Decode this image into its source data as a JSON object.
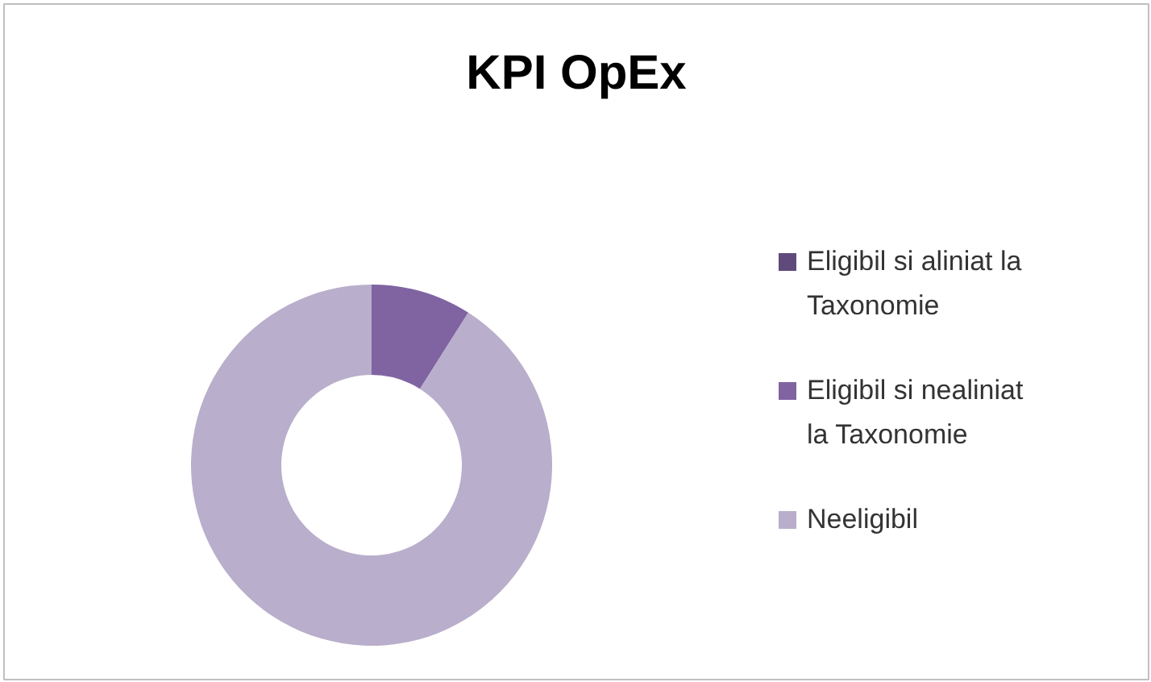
{
  "chart_data": {
    "type": "donut",
    "title": "KPI OpEx",
    "categories": [
      "Eligibil si aliniat la Taxonomie",
      "Eligibil si nealiniat la Taxonomie",
      "Neeligibil"
    ],
    "values": [
      0,
      9,
      91
    ],
    "colors": [
      "#604a7b",
      "#8064a2",
      "#b9aecb"
    ],
    "legend": "right"
  }
}
